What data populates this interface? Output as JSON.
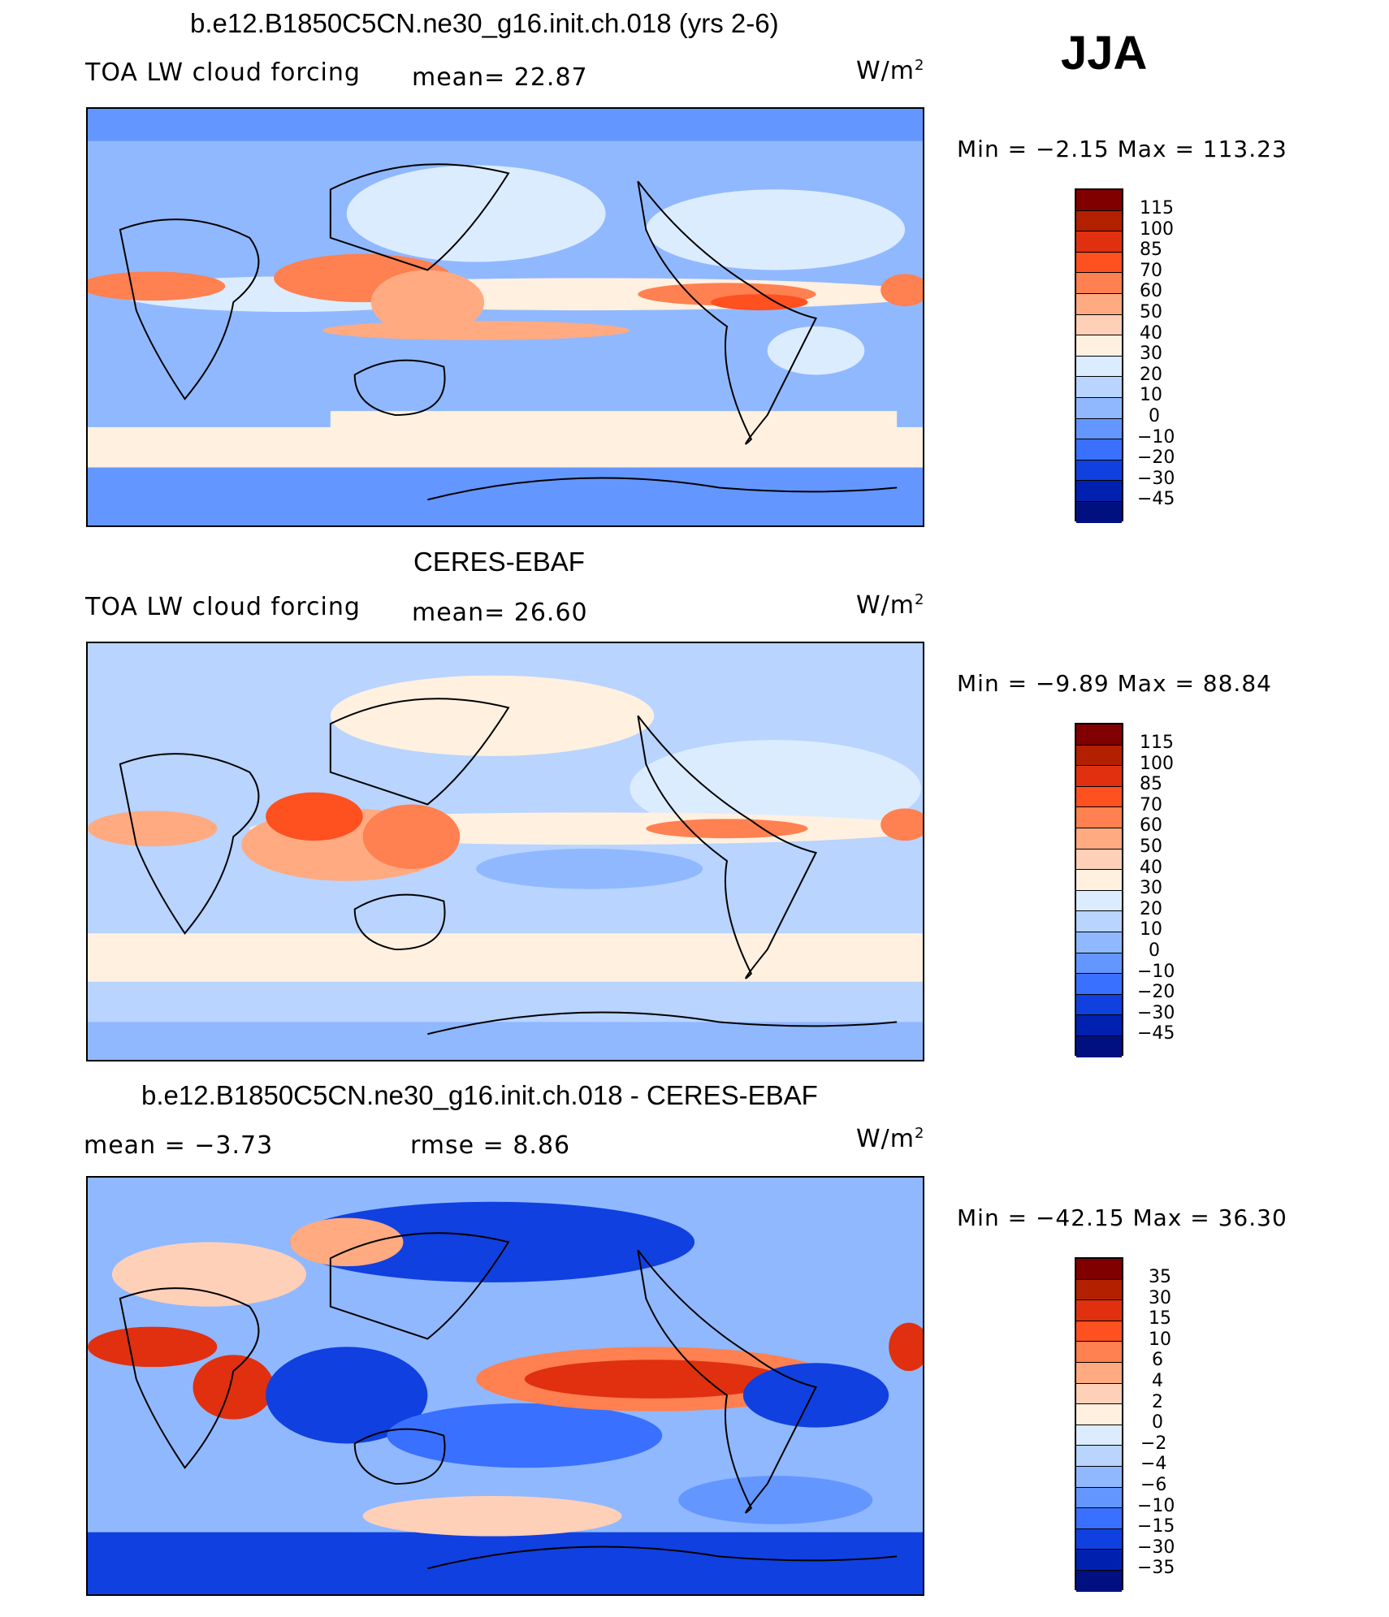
{
  "season": "JJA",
  "panels": [
    {
      "title": "b.e12.B1850C5CN.ne30_g16.init.ch.018 (yrs 2-6)",
      "variable": "TOA LW cloud forcing",
      "stat": "mean=   22.87",
      "units": "W/m",
      "units_sup": "2",
      "minmax": "Min =   −2.15  Max  =  113.23",
      "colorbar_labels": [
        "115",
        "100",
        "85",
        "70",
        "60",
        "50",
        "40",
        "30",
        "20",
        "10",
        "0",
        "−10",
        "−20",
        "−30",
        "−45"
      ]
    },
    {
      "title": "CERES-EBAF",
      "variable": "TOA LW cloud forcing",
      "stat": "mean=   26.60",
      "units": "W/m",
      "units_sup": "2",
      "minmax": "Min =   −9.89  Max  =   88.84",
      "colorbar_labels": [
        "115",
        "100",
        "85",
        "70",
        "60",
        "50",
        "40",
        "30",
        "20",
        "10",
        "0",
        "−10",
        "−20",
        "−30",
        "−45"
      ]
    },
    {
      "title": "b.e12.B1850C5CN.ne30_g16.init.ch.018 - CERES-EBAF",
      "stat_left": "mean  =    −3.73",
      "stat_mid": "rmse  =     8.86",
      "units": "W/m",
      "units_sup": "2",
      "minmax": "Min  = −42.15  Max  =    36.30",
      "colorbar_labels": [
        "35",
        "30",
        "15",
        "10",
        "6",
        "4",
        "2",
        "0",
        "−2",
        "−4",
        "−6",
        "−10",
        "−15",
        "−30",
        "−35"
      ]
    }
  ],
  "colors": {
    "scale": [
      "#800000",
      "#b22000",
      "#e03010",
      "#ff5020",
      "#ff8050",
      "#ffaa80",
      "#ffd0b8",
      "#fff0e0",
      "#dcecff",
      "#b8d4ff",
      "#90b8ff",
      "#6496ff",
      "#3a70ff",
      "#1040e0",
      "#0020b0",
      "#001080"
    ],
    "land_outline": "#000000"
  }
}
